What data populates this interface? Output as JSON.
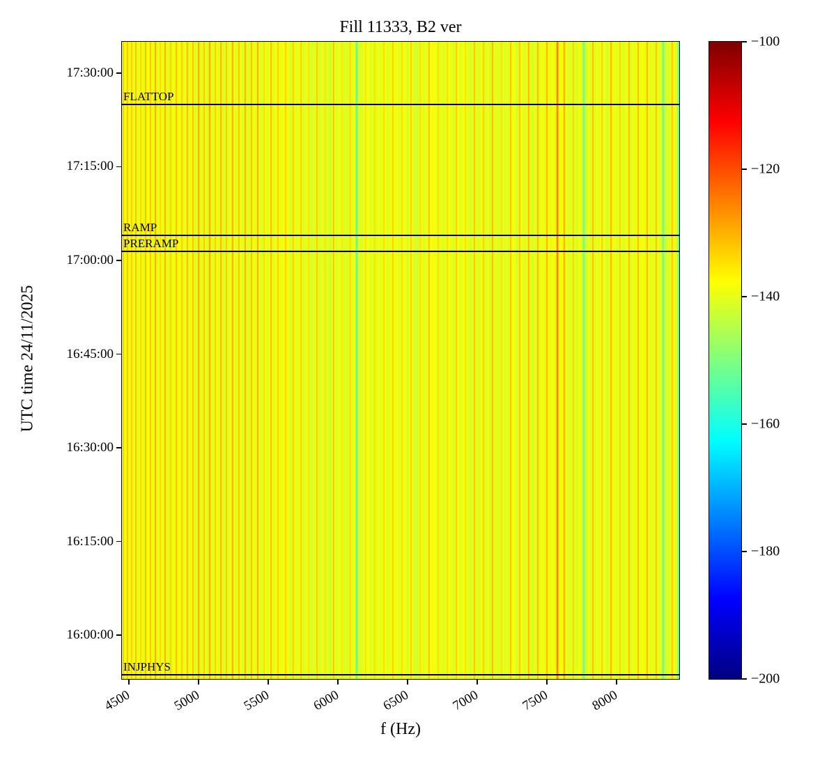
{
  "chart_data": {
    "type": "heatmap",
    "title": "Fill 11333, B2 ver",
    "xlabel": "f (Hz)",
    "ylabel": "UTC time 24/11/2025",
    "colormap": "jet",
    "x_axis": {
      "min": 4450,
      "max": 8450,
      "ticks": [
        4500,
        5000,
        5500,
        6000,
        6500,
        7000,
        7500,
        8000
      ],
      "tick_labels": [
        "4500",
        "5000",
        "5500",
        "6000",
        "6500",
        "7000",
        "7500",
        "8000"
      ]
    },
    "y_axis": {
      "start": "15:53:00",
      "end": "17:35:00",
      "ticks": [
        "16:00:00",
        "16:15:00",
        "16:30:00",
        "16:45:00",
        "17:00:00",
        "17:15:00",
        "17:30:00"
      ]
    },
    "colorbar": {
      "min": -200,
      "max": -100,
      "tick_values": [
        -100,
        -120,
        -140,
        -160,
        -180,
        -200
      ],
      "tick_labels": [
        "−100",
        "−120",
        "−140",
        "−160",
        "−180",
        "−200"
      ]
    },
    "annotations": [
      {
        "label": "FLATTOP",
        "time": "17:25:00"
      },
      {
        "label": "RAMP",
        "time": "17:04:00"
      },
      {
        "label": "PRERAMP",
        "time": "17:01:30"
      },
      {
        "label": "INJPHYS",
        "time": "15:53:40"
      }
    ],
    "heatmap": {
      "base_dB": -140,
      "noise_dB": 2,
      "stripes_format": [
        "freq_Hz",
        "peak_dB",
        "width_Hz"
      ],
      "stripes": [
        [
          4460,
          -130,
          8
        ],
        [
          4490,
          -128,
          9
        ],
        [
          4520,
          -131,
          8
        ],
        [
          4550,
          -128,
          9
        ],
        [
          4585,
          -130,
          8
        ],
        [
          4620,
          -128,
          9
        ],
        [
          4655,
          -131,
          8
        ],
        [
          4690,
          -128,
          9
        ],
        [
          4725,
          -130,
          8
        ],
        [
          4760,
          -127,
          9
        ],
        [
          4800,
          -130,
          8
        ],
        [
          4840,
          -128,
          9
        ],
        [
          4880,
          -131,
          8
        ],
        [
          4920,
          -128,
          9
        ],
        [
          4960,
          -130,
          8
        ],
        [
          5000,
          -127,
          9
        ],
        [
          5040,
          -130,
          8
        ],
        [
          5080,
          -128,
          9
        ],
        [
          5120,
          -131,
          8
        ],
        [
          5160,
          -128,
          9
        ],
        [
          5200,
          -130,
          8
        ],
        [
          5245,
          -126,
          10
        ],
        [
          5290,
          -129,
          8
        ],
        [
          5335,
          -127,
          9
        ],
        [
          5380,
          -130,
          8
        ],
        [
          5425,
          -128,
          9
        ],
        [
          5470,
          -131,
          8
        ],
        [
          5520,
          -129,
          9
        ],
        [
          5570,
          -131,
          8
        ],
        [
          5625,
          -129,
          9
        ],
        [
          5680,
          -132,
          8
        ],
        [
          5735,
          -130,
          9
        ],
        [
          5790,
          -132,
          8
        ],
        [
          5850,
          -130,
          9
        ],
        [
          5910,
          -133,
          8
        ],
        [
          5970,
          -131,
          9
        ],
        [
          6030,
          -133,
          8
        ],
        [
          6090,
          -132,
          8
        ],
        [
          6135,
          -156,
          12
        ],
        [
          6200,
          -133,
          8
        ],
        [
          6265,
          -132,
          8
        ],
        [
          6330,
          -133,
          8
        ],
        [
          6395,
          -132,
          8
        ],
        [
          6460,
          -133,
          8
        ],
        [
          6525,
          -131,
          8
        ],
        [
          6590,
          -133,
          8
        ],
        [
          6655,
          -131,
          8
        ],
        [
          6720,
          -132,
          8
        ],
        [
          6785,
          -130,
          8
        ],
        [
          6850,
          -132,
          8
        ],
        [
          6915,
          -130,
          8
        ],
        [
          6980,
          -129,
          9
        ],
        [
          7045,
          -131,
          8
        ],
        [
          7110,
          -129,
          9
        ],
        [
          7175,
          -131,
          8
        ],
        [
          7240,
          -129,
          9
        ],
        [
          7305,
          -131,
          8
        ],
        [
          7370,
          -129,
          9
        ],
        [
          7435,
          -130,
          8
        ],
        [
          7500,
          -128,
          9
        ],
        [
          7575,
          -121,
          14
        ],
        [
          7625,
          -127,
          9
        ],
        [
          7690,
          -130,
          8
        ],
        [
          7765,
          -154,
          12
        ],
        [
          7830,
          -128,
          9
        ],
        [
          7895,
          -130,
          8
        ],
        [
          7960,
          -128,
          9
        ],
        [
          8025,
          -130,
          8
        ],
        [
          8090,
          -128,
          9
        ],
        [
          8155,
          -130,
          8
        ],
        [
          8220,
          -129,
          9
        ],
        [
          8285,
          -131,
          8
        ],
        [
          8335,
          -155,
          10
        ],
        [
          8400,
          -130,
          8
        ],
        [
          8445,
          -156,
          12
        ]
      ]
    }
  }
}
